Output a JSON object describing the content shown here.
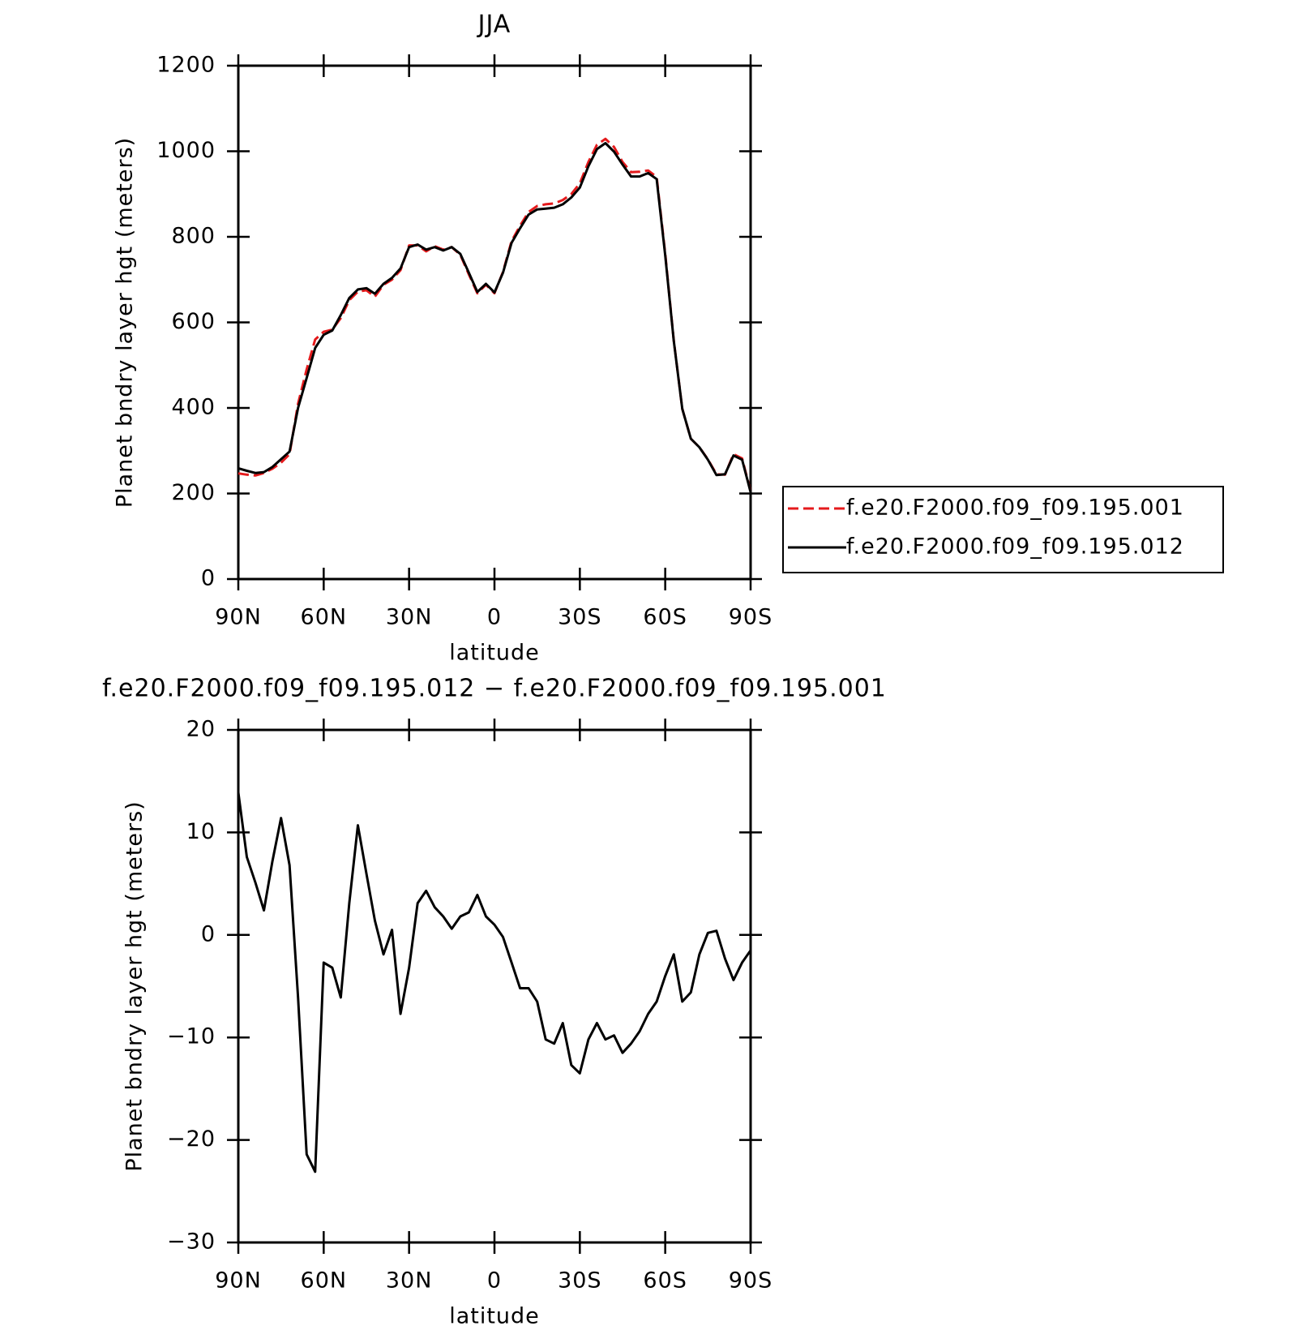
{
  "chart_data": [
    {
      "type": "line",
      "title": "JJA",
      "x_label": "latitude",
      "y_label": "Planet bndry layer hgt (meters)",
      "xlim": [
        90,
        -90
      ],
      "ylim": [
        0,
        1200
      ],
      "xticks": [
        {
          "value": 90,
          "label": "90N"
        },
        {
          "value": 60,
          "label": "60N"
        },
        {
          "value": 30,
          "label": "30N"
        },
        0,
        {
          "value": -30,
          "label": "30S"
        },
        {
          "value": -60,
          "label": "60S"
        },
        {
          "value": -90,
          "label": "90S"
        }
      ],
      "yticks": [
        0,
        200,
        400,
        600,
        800,
        1000,
        1200
      ],
      "legend": "right",
      "x": [
        90,
        87,
        84,
        81,
        78,
        75,
        72,
        69,
        66,
        63,
        60,
        57,
        54,
        51,
        48,
        45,
        42,
        39,
        36,
        33,
        30,
        27,
        24,
        21,
        18,
        15,
        12,
        9,
        6,
        3,
        0,
        -3,
        -6,
        -9,
        -12,
        -15,
        -18,
        -21,
        -24,
        -27,
        -30,
        -33,
        -36,
        -39,
        -42,
        -45,
        -48,
        -51,
        -54,
        -57,
        -60,
        -63,
        -66,
        -69,
        -72,
        -75,
        -78,
        -81,
        -84,
        -87,
        -90
      ],
      "series": [
        {
          "name": "f.e20.F2000.f09_f09.195.001",
          "color": "#e41a1c",
          "dash": true,
          "values": [
            247,
            244,
            242,
            248,
            258,
            272,
            292,
            410,
            490,
            560,
            578,
            583,
            610,
            652,
            672,
            675,
            660,
            688,
            700,
            722,
            780,
            780,
            766,
            778,
            770,
            776,
            758,
            712,
            668,
            688,
            668,
            718,
            790,
            826,
            858,
            872,
            876,
            878,
            886,
            900,
            925,
            975,
            1015,
            1029,
            1010,
            975,
            951,
            952,
            955,
            940,
            760,
            558,
            398,
            328,
            308,
            280,
            245,
            244,
            292,
            282,
            205
          ]
        },
        {
          "name": "f.e20.F2000.f09_f09.195.012",
          "color": "#000000",
          "dash": false,
          "values": [
            259,
            253,
            248,
            250,
            262,
            280,
            298,
            400,
            470,
            540,
            571,
            581,
            617,
            657,
            677,
            680,
            667,
            690,
            704,
            726,
            776,
            782,
            770,
            776,
            768,
            776,
            760,
            716,
            671,
            690,
            670,
            716,
            786,
            820,
            852,
            864,
            866,
            868,
            876,
            892,
            915,
            965,
            1005,
            1019,
            999,
            969,
            941,
            941,
            949,
            935,
            756,
            557,
            398,
            328,
            308,
            279,
            243,
            245,
            289,
            279,
            203
          ]
        }
      ]
    },
    {
      "type": "line",
      "title": "f.e20.F2000.f09_f09.195.012 − f.e20.F2000.f09_f09.195.001",
      "x_label": "latitude",
      "y_label": "Planet bndry layer hgt (meters)",
      "xlim": [
        90,
        -90
      ],
      "ylim": [
        -30,
        20
      ],
      "xticks": [
        {
          "value": 90,
          "label": "90N"
        },
        {
          "value": 60,
          "label": "60N"
        },
        {
          "value": 30,
          "label": "30N"
        },
        0,
        {
          "value": -30,
          "label": "30S"
        },
        {
          "value": -60,
          "label": "60S"
        },
        {
          "value": -90,
          "label": "90S"
        }
      ],
      "yticks": [
        {
          "value": -30,
          "label": "−30"
        },
        {
          "value": -20,
          "label": "−20"
        },
        {
          "value": -10,
          "label": "−10"
        },
        0,
        10,
        20
      ],
      "x": [
        90,
        87,
        84,
        81,
        78,
        75,
        72,
        69,
        66,
        63,
        60,
        57,
        54,
        51,
        48,
        45,
        42,
        39,
        36,
        33,
        30,
        27,
        24,
        21,
        18,
        15,
        12,
        9,
        6,
        3,
        0,
        -3,
        -6,
        -9,
        -12,
        -15,
        -18,
        -21,
        -24,
        -27,
        -30,
        -33,
        -36,
        -39,
        -42,
        -45,
        -48,
        -51,
        -54,
        -57,
        -60,
        -63,
        -66,
        -69,
        -72,
        -75,
        -78,
        -81,
        -84,
        -87,
        -90
      ],
      "series": [
        {
          "color": "#000000",
          "dash": false,
          "values": [
            13.9,
            7.6,
            5.1,
            2.4,
            7.2,
            11.4,
            6.8,
            -6.1,
            -21.4,
            -23.1,
            -2.7,
            -3.2,
            -6.1,
            3.1,
            10.7,
            6.0,
            1.4,
            -1.9,
            0.5,
            -7.7,
            -3.2,
            3.1,
            4.3,
            2.7,
            1.8,
            0.6,
            1.8,
            2.2,
            3.9,
            1.8,
            1.0,
            -0.2,
            -2.7,
            -5.2,
            -5.2,
            -6.5,
            -10.2,
            -10.6,
            -8.6,
            -12.7,
            -13.5,
            -10.2,
            -8.6,
            -10.2,
            -9.8,
            -11.5,
            -10.6,
            -9.4,
            -7.7,
            -6.5,
            -4.0,
            -1.9,
            -6.5,
            -5.6,
            -1.9,
            0.2,
            0.4,
            -2.3,
            -4.4,
            -2.7,
            -1.5
          ]
        }
      ]
    }
  ]
}
